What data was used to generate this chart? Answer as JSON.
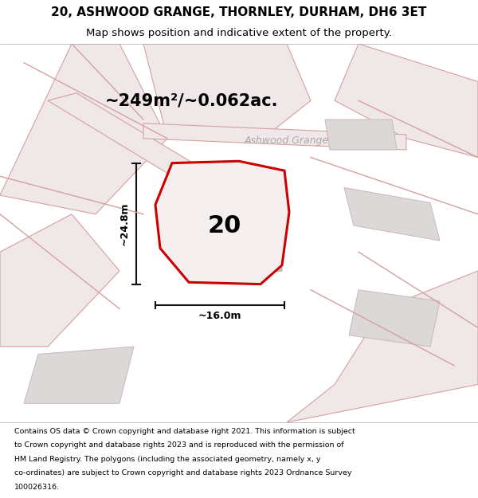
{
  "title_line1": "20, ASHWOOD GRANGE, THORNLEY, DURHAM, DH6 3ET",
  "title_line2": "Map shows position and indicative extent of the property.",
  "area_text": "~249m²/~0.062ac.",
  "street_label": "Ashwood Grange",
  "number_label": "20",
  "dim_height": "~24.8m",
  "dim_width": "~16.0m",
  "footer_lines": [
    "Contains OS data © Crown copyright and database right 2021. This information is subject",
    "to Crown copyright and database rights 2023 and is reproduced with the permission of",
    "HM Land Registry. The polygons (including the associated geometry, namely x, y",
    "co-ordinates) are subject to Crown copyright and database rights 2023 Ordnance Survey",
    "100026316."
  ],
  "map_bg": "#f4eeee",
  "plot_outline_color": "#cc0000",
  "building_color": "#d0cccc",
  "road_patch_color": "#f0e8e8",
  "road_edge_color": "#d4a0a0",
  "other_plot_color": "#ddd8d8",
  "other_plot_edge": "#c8b8b8",
  "street_label_color": "#aaaaaa",
  "dim_line_color": "#111111"
}
